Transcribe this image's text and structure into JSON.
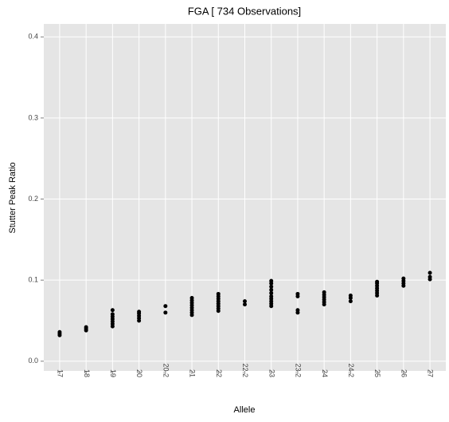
{
  "chart_data": {
    "type": "scatter",
    "title": "FGA  [ 734  Observations]",
    "x_label": "Allele",
    "y_label": "Stutter Peak Ratio",
    "categories": [
      "17",
      "18",
      "19",
      "20",
      "20.2",
      "21",
      "22",
      "22.2",
      "23",
      "23.2",
      "24",
      "24.2",
      "25",
      "26",
      "27"
    ],
    "x": [
      "17",
      "17",
      "17",
      "18",
      "18",
      "18",
      "19",
      "19",
      "19",
      "19",
      "19",
      "19",
      "19",
      "20",
      "20",
      "20",
      "20",
      "20",
      "20.2",
      "20.2",
      "21",
      "21",
      "21",
      "21",
      "21",
      "21",
      "21",
      "21",
      "22",
      "22",
      "22",
      "22",
      "22",
      "22",
      "22",
      "22",
      "22.2",
      "22.2",
      "23",
      "23",
      "23",
      "23",
      "23",
      "23",
      "23",
      "23",
      "23",
      "23",
      "23.2",
      "23.2",
      "23.2",
      "23.2",
      "24",
      "24",
      "24",
      "24",
      "24",
      "24",
      "24.2",
      "24.2",
      "24.2",
      "25",
      "25",
      "25",
      "25",
      "25",
      "25",
      "25",
      "26",
      "26",
      "26",
      "26",
      "27",
      "27",
      "27"
    ],
    "y": [
      0.032,
      0.034,
      0.036,
      0.038,
      0.04,
      0.042,
      0.043,
      0.046,
      0.049,
      0.052,
      0.055,
      0.058,
      0.063,
      0.05,
      0.053,
      0.056,
      0.059,
      0.061,
      0.06,
      0.068,
      0.057,
      0.06,
      0.063,
      0.066,
      0.069,
      0.072,
      0.075,
      0.078,
      0.062,
      0.065,
      0.068,
      0.071,
      0.074,
      0.077,
      0.08,
      0.083,
      0.07,
      0.074,
      0.068,
      0.071,
      0.074,
      0.077,
      0.08,
      0.084,
      0.088,
      0.092,
      0.096,
      0.099,
      0.06,
      0.063,
      0.08,
      0.083,
      0.07,
      0.073,
      0.076,
      0.079,
      0.082,
      0.085,
      0.074,
      0.078,
      0.081,
      0.081,
      0.084,
      0.087,
      0.09,
      0.093,
      0.096,
      0.098,
      0.093,
      0.096,
      0.099,
      0.102,
      0.101,
      0.104,
      0.109
    ],
    "color": "#000000",
    "ylim": [
      -0.012,
      0.416
    ],
    "yticks": [
      {
        "value": 0,
        "label": "0.0"
      },
      {
        "value": 0.1,
        "label": "0.1"
      },
      {
        "value": 0.2,
        "label": "0.2"
      },
      {
        "value": 0.3,
        "label": "0.3"
      },
      {
        "value": 0.4,
        "label": "0.4"
      }
    ],
    "grid": true
  }
}
